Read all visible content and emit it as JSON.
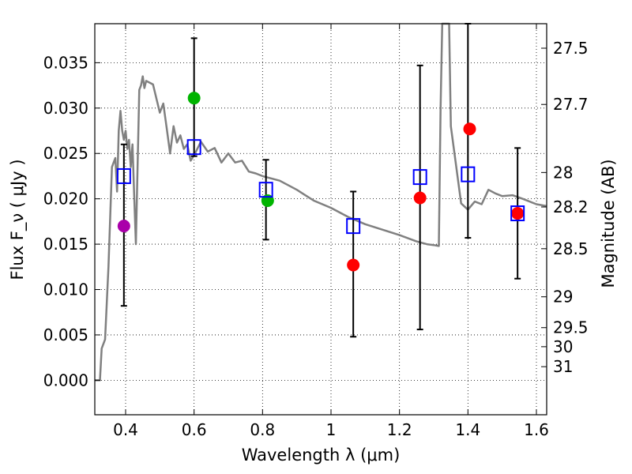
{
  "chart_data": {
    "type": "scatter",
    "title": "",
    "xlabel": "Wavelength  λ (μm)",
    "ylabel": "Flux  F_ν  ( μJy )",
    "ylabel_right": "Magnitude (AB)",
    "xlim": [
      0.31,
      1.63
    ],
    "ylim": [
      -0.0038,
      0.0393
    ],
    "grid": true,
    "x_ticks": [
      {
        "value": 0.4,
        "label": "0.4"
      },
      {
        "value": 0.6,
        "label": "0.6"
      },
      {
        "value": 0.8,
        "label": "0.8"
      },
      {
        "value": 1.0,
        "label": "1"
      },
      {
        "value": 1.2,
        "label": "1.2"
      },
      {
        "value": 1.4,
        "label": "1.4"
      },
      {
        "value": 1.6,
        "label": "1.6"
      }
    ],
    "y_ticks": [
      {
        "value": 0.0,
        "label": "0.000"
      },
      {
        "value": 0.005,
        "label": "0.005"
      },
      {
        "value": 0.01,
        "label": "0.010"
      },
      {
        "value": 0.015,
        "label": "0.015"
      },
      {
        "value": 0.02,
        "label": "0.020"
      },
      {
        "value": 0.025,
        "label": "0.025"
      },
      {
        "value": 0.03,
        "label": "0.030"
      },
      {
        "value": 0.035,
        "label": "0.035"
      }
    ],
    "mag_ticks": [
      {
        "flux": 0.0366,
        "label": "27.5"
      },
      {
        "flux": 0.0304,
        "label": "27.7"
      },
      {
        "flux": 0.0229,
        "label": "28"
      },
      {
        "flux": 0.0191,
        "label": "28.2"
      },
      {
        "flux": 0.0145,
        "label": "28.5"
      },
      {
        "flux": 0.0092,
        "label": "29"
      },
      {
        "flux": 0.0058,
        "label": "29.5"
      },
      {
        "flux": 0.0037,
        "label": "30"
      },
      {
        "flux": 0.0015,
        "label": "31"
      }
    ],
    "model_spectrum": {
      "name": "SED template",
      "color": "#808080",
      "x": [
        0.31,
        0.315,
        0.32,
        0.325,
        0.33,
        0.34,
        0.35,
        0.36,
        0.37,
        0.375,
        0.38,
        0.385,
        0.39,
        0.395,
        0.4,
        0.405,
        0.41,
        0.415,
        0.42,
        0.425,
        0.43,
        0.44,
        0.445,
        0.45,
        0.455,
        0.46,
        0.48,
        0.5,
        0.51,
        0.52,
        0.53,
        0.54,
        0.55,
        0.56,
        0.57,
        0.58,
        0.59,
        0.6,
        0.62,
        0.64,
        0.66,
        0.68,
        0.7,
        0.72,
        0.74,
        0.76,
        0.78,
        0.8,
        0.85,
        0.9,
        0.95,
        1.0,
        1.05,
        1.1,
        1.15,
        1.2,
        1.25,
        1.28,
        1.3,
        1.315,
        1.32,
        1.325,
        1.33,
        1.335,
        1.34,
        1.345,
        1.35,
        1.38,
        1.4,
        1.42,
        1.44,
        1.46,
        1.48,
        1.5,
        1.53,
        1.56,
        1.6,
        1.63
      ],
      "y": [
        0.0,
        0.0,
        0.0,
        0.0,
        0.0035,
        0.0045,
        0.0125,
        0.0235,
        0.0245,
        0.0208,
        0.0275,
        0.0297,
        0.0275,
        0.0265,
        0.0275,
        0.0255,
        0.0265,
        0.0235,
        0.026,
        0.0205,
        0.015,
        0.032,
        0.0325,
        0.0335,
        0.0322,
        0.033,
        0.0326,
        0.0295,
        0.0305,
        0.0278,
        0.025,
        0.028,
        0.0262,
        0.027,
        0.0255,
        0.026,
        0.0242,
        0.0248,
        0.0263,
        0.0252,
        0.0256,
        0.024,
        0.025,
        0.024,
        0.0242,
        0.023,
        0.0228,
        0.0225,
        0.022,
        0.021,
        0.0198,
        0.019,
        0.018,
        0.0172,
        0.0166,
        0.016,
        0.0153,
        0.015,
        0.0149,
        0.0148,
        0.03,
        0.0393,
        0.0393,
        0.0393,
        0.0393,
        0.0393,
        0.028,
        0.0195,
        0.0188,
        0.0197,
        0.0194,
        0.021,
        0.0206,
        0.0203,
        0.0204,
        0.02,
        0.0194,
        0.0192
      ]
    },
    "filled_points": [
      {
        "x": 0.395,
        "y": 0.017,
        "color": "#aa00aa"
      },
      {
        "x": 0.6,
        "y": 0.0311,
        "color": "#00b400"
      },
      {
        "x": 0.815,
        "y": 0.0198,
        "color": "#00b400"
      },
      {
        "x": 1.065,
        "y": 0.0127,
        "color": "#ff0000"
      },
      {
        "x": 1.26,
        "y": 0.0201,
        "color": "#ff0000"
      },
      {
        "x": 1.405,
        "y": 0.0277,
        "color": "#ff0000"
      },
      {
        "x": 1.545,
        "y": 0.0184,
        "color": "#ff0000"
      }
    ],
    "model_points": [
      {
        "x": 0.395,
        "y": 0.0225,
        "err_low": 0.0082,
        "err_high": 0.026
      },
      {
        "x": 0.6,
        "y": 0.0257,
        "err_low": 0.0247,
        "err_high": 0.0377
      },
      {
        "x": 0.81,
        "y": 0.021,
        "err_low": 0.0155,
        "err_high": 0.0243
      },
      {
        "x": 1.065,
        "y": 0.017,
        "err_low": 0.0048,
        "err_high": 0.0208
      },
      {
        "x": 1.26,
        "y": 0.0224,
        "err_low": 0.0056,
        "err_high": 0.0347
      },
      {
        "x": 1.4,
        "y": 0.0227,
        "err_low": 0.0157,
        "err_high": 0.0393
      },
      {
        "x": 1.545,
        "y": 0.0184,
        "err_low": 0.0112,
        "err_high": 0.0256
      }
    ],
    "model_marker_color": "#0000ff"
  }
}
